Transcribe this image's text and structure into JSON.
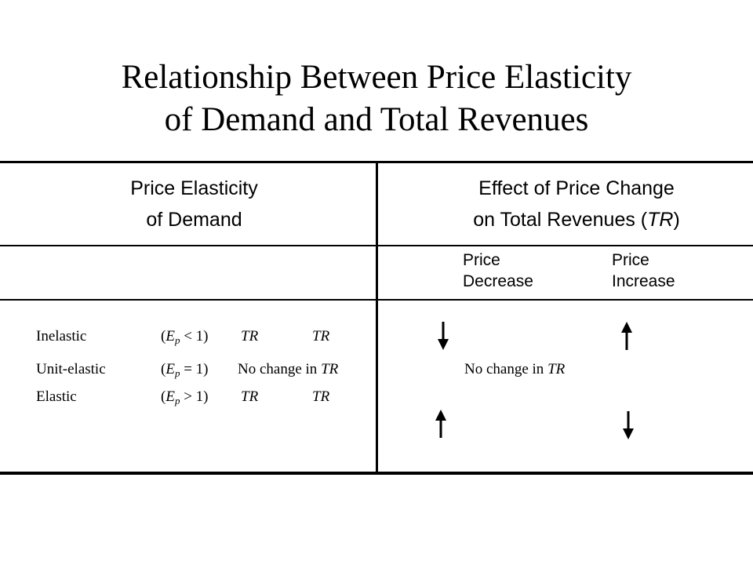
{
  "title": {
    "line1": "Relationship Between Price Elasticity",
    "line2": "of Demand and Total Revenues"
  },
  "header": {
    "left_line1": "Price Elasticity",
    "left_line2": "of Demand",
    "right_line1": "Effect of Price Change",
    "right_line2_prefix": "on Total Revenues (",
    "right_line2_italic": "TR",
    "right_line2_suffix": ")"
  },
  "subheader": {
    "decrease_line1": "Price",
    "decrease_line2": "Decrease",
    "increase_line1": "Price",
    "increase_line2": "Increase"
  },
  "rows": [
    {
      "name": "Inelastic",
      "ep_open": "(E",
      "ep_sub": "p",
      "ep_rest": " < 1)",
      "col3": "TR",
      "col4": "TR",
      "decrease_arrow": "down-arrow-icon",
      "increase_arrow": "up-arrow-icon"
    },
    {
      "name": "Unit-elastic",
      "ep_open": "(E",
      "ep_sub": "p",
      "ep_rest": " = 1)",
      "col3_prefix": "No change in ",
      "col3_italic": "TR",
      "decrease_prefix": "No change in ",
      "decrease_italic": "TR"
    },
    {
      "name": "Elastic",
      "ep_open": "(E",
      "ep_sub": "p",
      "ep_rest": " > 1)",
      "col3": "TR",
      "col4": "TR",
      "decrease_arrow": "up-arrow-icon",
      "increase_arrow": "down-arrow-icon"
    }
  ]
}
